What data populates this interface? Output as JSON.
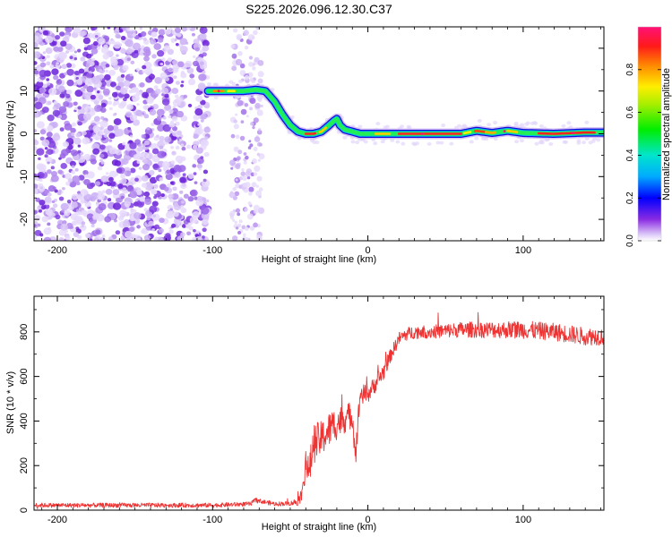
{
  "title": "S225.2026.096.12.30.C37",
  "chart_data": [
    {
      "type": "heatmap",
      "title": "S225.2026.096.12.30.C37",
      "xlabel": "Height of straight line (km)",
      "ylabel": "Frequency (Hz)",
      "xlim": [
        -215,
        152
      ],
      "ylim": [
        -25,
        25
      ],
      "xticks": [
        -200,
        -100,
        0,
        100
      ],
      "xtick_labels": [
        "-200",
        "-100",
        "0",
        "100"
      ],
      "yticks": [
        -20,
        -10,
        0,
        10,
        20
      ],
      "ytick_labels": [
        "-20",
        "-10",
        "0",
        "10",
        "20"
      ],
      "colorbar": {
        "label": "Normalized spectral amplitude",
        "range": [
          0,
          1
        ],
        "ticks": [
          0.0,
          0.2,
          0.4,
          0.6,
          0.8
        ],
        "tick_labels": [
          "0.0",
          "0.2",
          "0.4",
          "0.6",
          "0.8"
        ],
        "colormap": "rainbow (violet-blue-cyan-green-yellow-orange-red-magenta)"
      },
      "signal_start_km": -103,
      "ridge": {
        "x": [
          -103,
          -90,
          -80,
          -72,
          -66,
          -60,
          -55,
          -50,
          -45,
          -40,
          -35,
          -30,
          -25,
          -22,
          -20,
          -18,
          -15,
          -10,
          -5,
          0,
          10,
          20,
          40,
          60,
          70,
          80,
          90,
          100,
          120,
          140,
          152
        ],
        "freq": [
          10,
          10,
          10,
          10.3,
          10,
          7.5,
          4.5,
          2,
          0.5,
          0,
          0,
          0.5,
          2,
          3,
          3.5,
          2,
          1,
          0.5,
          0,
          0,
          0,
          0,
          0,
          0,
          0.7,
          0.2,
          0.7,
          0.2,
          0,
          0.3,
          0.3
        ]
      }
    },
    {
      "type": "line",
      "xlabel": "Height of straight line (km)",
      "ylabel": "SNR (10 * v/v)",
      "xlim": [
        -215,
        152
      ],
      "ylim": [
        0,
        960
      ],
      "xticks": [
        -200,
        -100,
        0,
        100
      ],
      "xtick_labels": [
        "-200",
        "-100",
        "0",
        "100"
      ],
      "yticks": [
        0,
        200,
        400,
        600,
        800
      ],
      "ytick_labels": [
        "0",
        "200",
        "400",
        "600",
        "800"
      ],
      "color": "#ee3333",
      "series": {
        "x": [
          -215,
          -150,
          -100,
          -75,
          -73,
          -60,
          -50,
          -45,
          -42,
          -40,
          -38,
          -35,
          -30,
          -25,
          -22,
          -18,
          -10,
          -8,
          -5,
          0,
          5,
          10,
          15,
          20,
          25,
          30,
          40,
          60,
          100,
          120,
          140,
          152
        ],
        "y": [
          22,
          22,
          22,
          28,
          45,
          28,
          30,
          40,
          80,
          230,
          160,
          300,
          320,
          360,
          380,
          400,
          430,
          250,
          520,
          520,
          570,
          620,
          700,
          770,
          790,
          800,
          800,
          810,
          810,
          800,
          780,
          780
        ],
        "noise_amplitude": [
          10,
          10,
          10,
          10,
          10,
          10,
          10,
          20,
          40,
          80,
          70,
          90,
          80,
          80,
          80,
          70,
          60,
          60,
          50,
          40,
          40,
          40,
          30,
          30,
          30,
          30,
          30,
          35,
          40,
          40,
          40,
          40
        ]
      }
    }
  ]
}
